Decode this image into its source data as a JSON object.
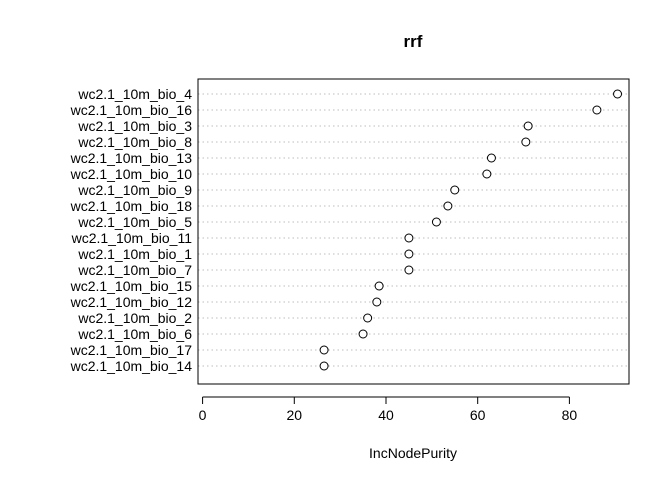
{
  "chart_data": {
    "type": "scatter",
    "subtype": "dotchart",
    "title": "rrf",
    "xlabel": "IncNodePurity",
    "ylabel": "",
    "xlim": [
      -1,
      93
    ],
    "xticks": [
      0,
      20,
      40,
      60,
      80
    ],
    "grid": "horizontal-dotted",
    "marker": "open-circle",
    "categories": [
      "wc2.1_10m_bio_4",
      "wc2.1_10m_bio_16",
      "wc2.1_10m_bio_3",
      "wc2.1_10m_bio_8",
      "wc2.1_10m_bio_13",
      "wc2.1_10m_bio_10",
      "wc2.1_10m_bio_9",
      "wc2.1_10m_bio_18",
      "wc2.1_10m_bio_5",
      "wc2.1_10m_bio_11",
      "wc2.1_10m_bio_1",
      "wc2.1_10m_bio_7",
      "wc2.1_10m_bio_15",
      "wc2.1_10m_bio_12",
      "wc2.1_10m_bio_2",
      "wc2.1_10m_bio_6",
      "wc2.1_10m_bio_17",
      "wc2.1_10m_bio_14"
    ],
    "values": [
      90.5,
      86.0,
      71.0,
      70.5,
      63.0,
      62.0,
      55.0,
      53.5,
      51.0,
      45.0,
      45.0,
      45.0,
      38.5,
      38.0,
      36.0,
      35.0,
      26.5,
      26.5
    ]
  }
}
